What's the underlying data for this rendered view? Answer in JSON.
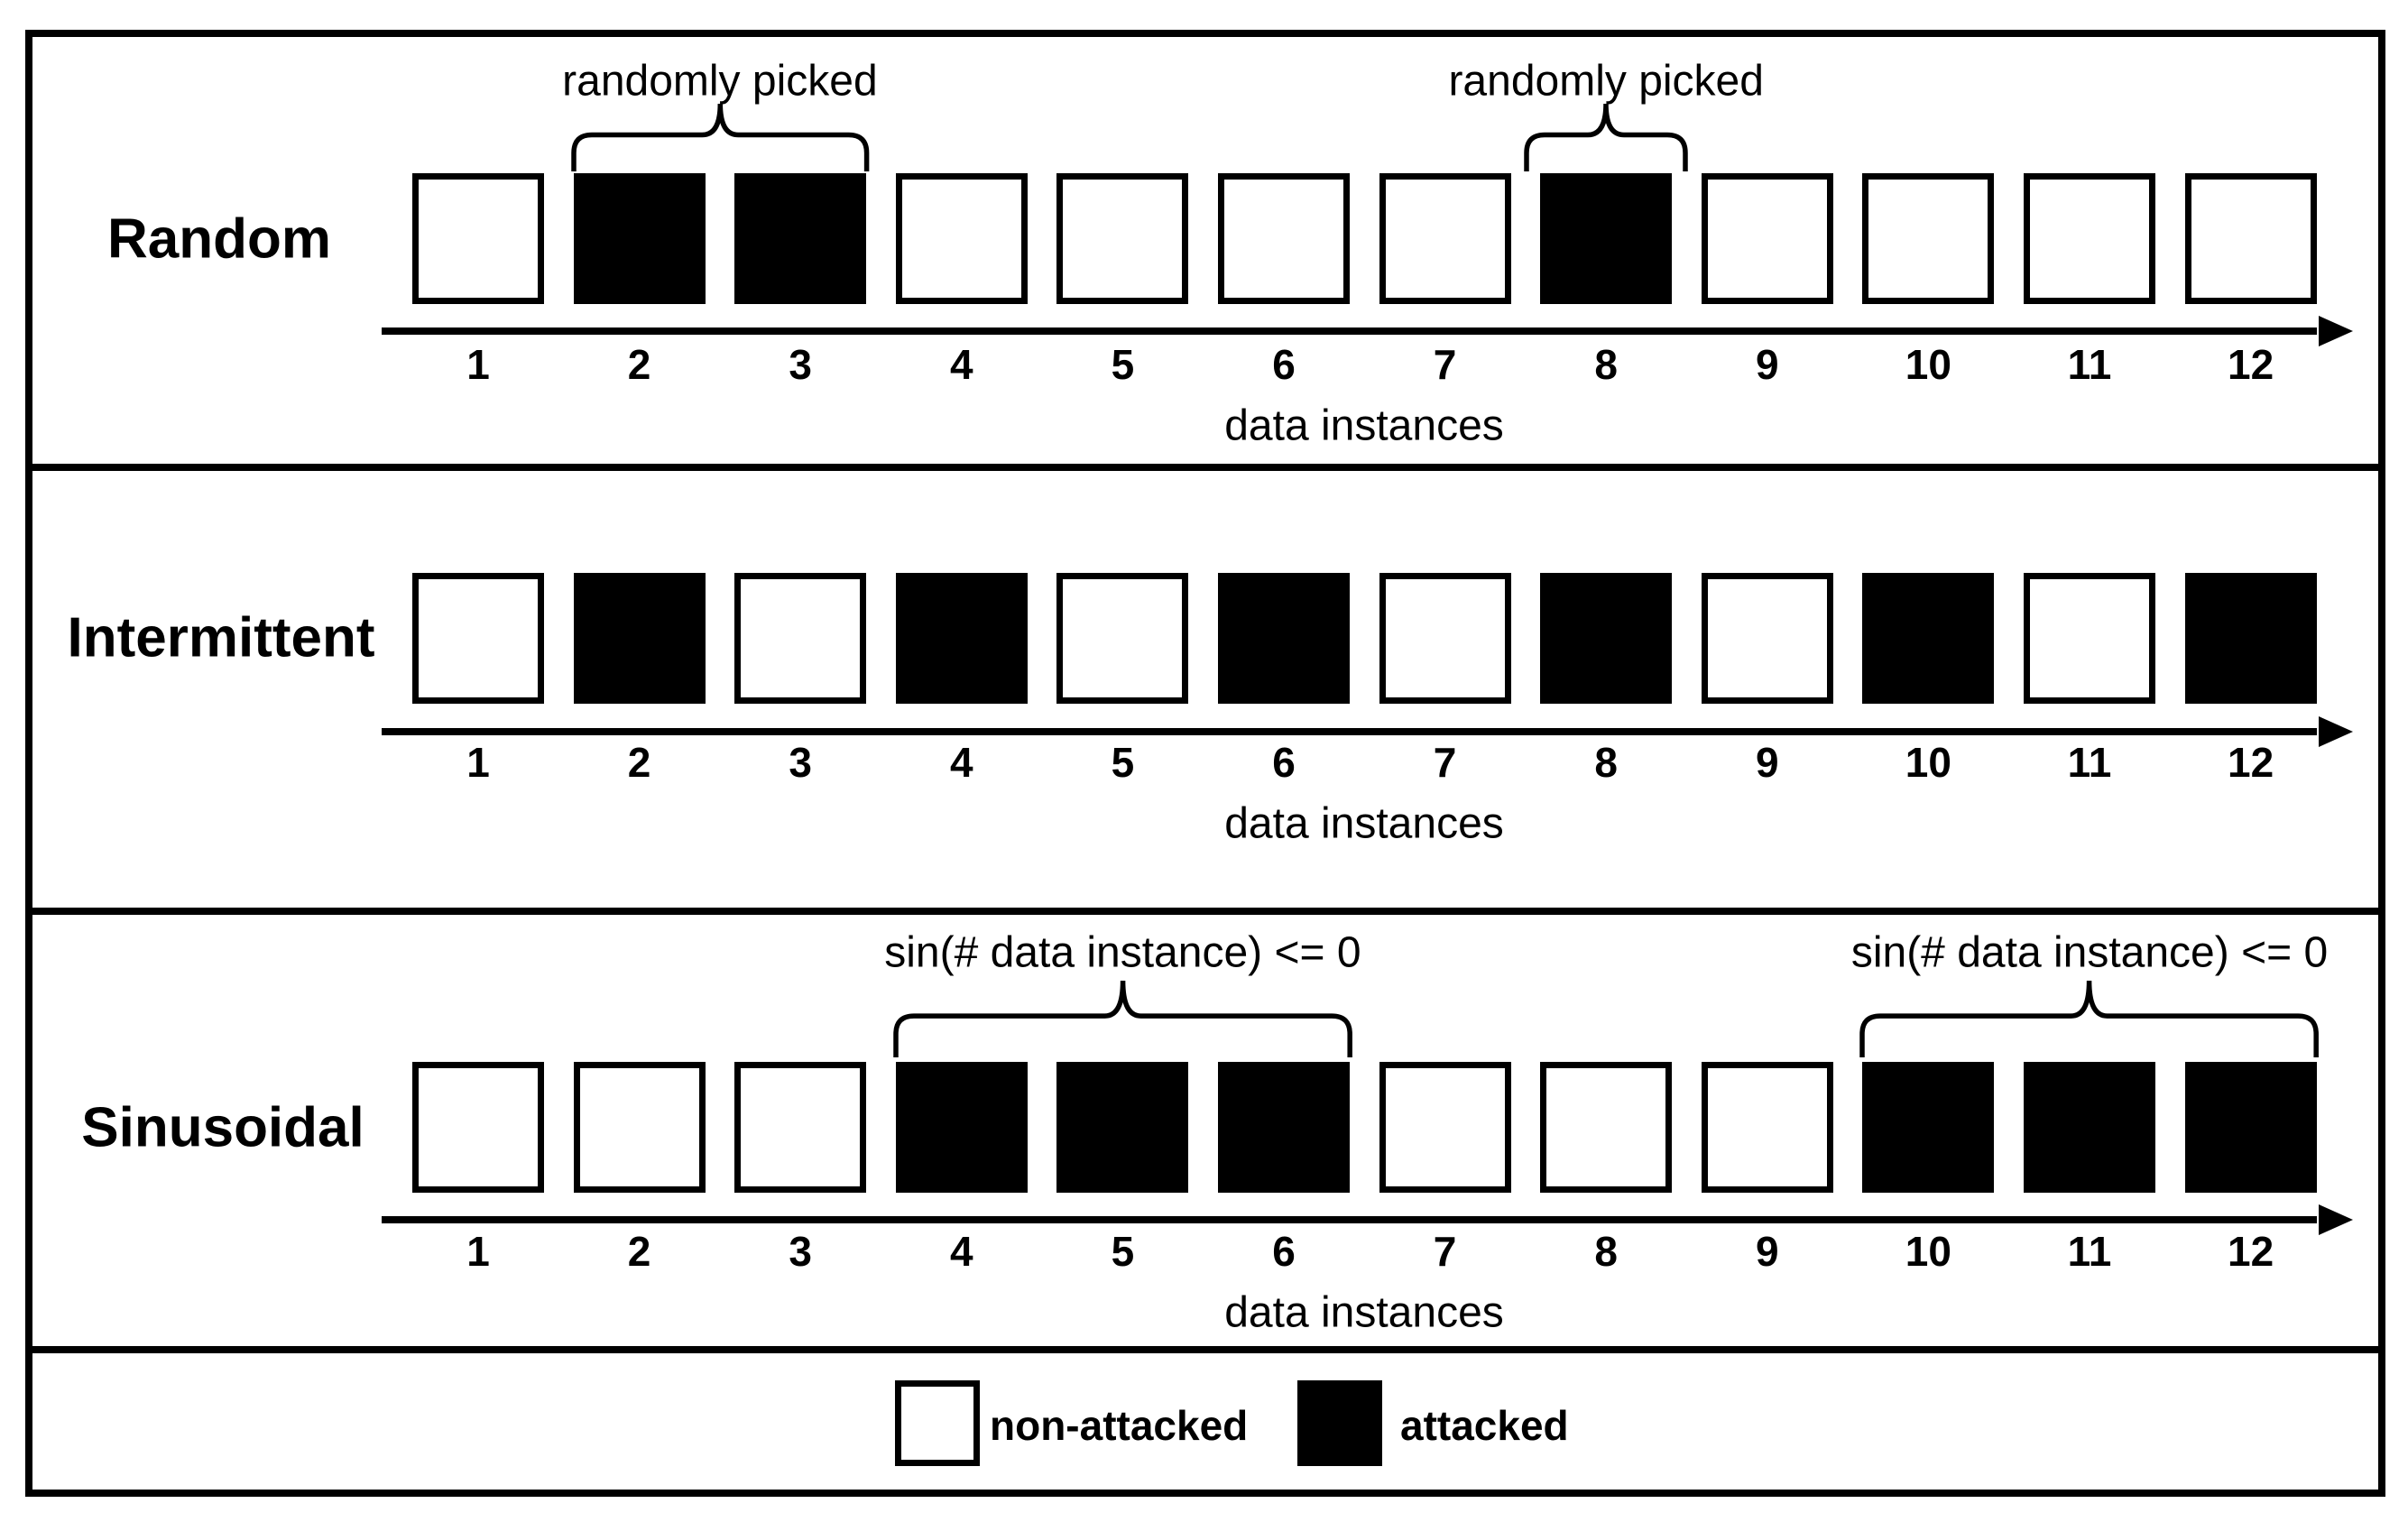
{
  "rows": [
    {
      "label": "Random",
      "pattern": [
        "non-attacked",
        "attacked",
        "attacked",
        "non-attacked",
        "non-attacked",
        "non-attacked",
        "non-attacked",
        "attacked",
        "non-attacked",
        "non-attacked",
        "non-attacked",
        "non-attacked"
      ],
      "ticks": [
        "1",
        "2",
        "3",
        "4",
        "5",
        "6",
        "7",
        "8",
        "9",
        "10",
        "11",
        "12"
      ],
      "axis_label": "data instances",
      "annotations": [
        {
          "label": "randomly picked",
          "from_instance": 2,
          "to_instance": 3
        },
        {
          "label": "randomly picked",
          "from_instance": 8,
          "to_instance": 8
        }
      ]
    },
    {
      "label": "Intermittent",
      "pattern": [
        "non-attacked",
        "attacked",
        "non-attacked",
        "attacked",
        "non-attacked",
        "attacked",
        "non-attacked",
        "attacked",
        "non-attacked",
        "attacked",
        "non-attacked",
        "attacked"
      ],
      "ticks": [
        "1",
        "2",
        "3",
        "4",
        "5",
        "6",
        "7",
        "8",
        "9",
        "10",
        "11",
        "12"
      ],
      "axis_label": "data instances",
      "annotations": []
    },
    {
      "label": "Sinusoidal",
      "pattern": [
        "non-attacked",
        "non-attacked",
        "non-attacked",
        "attacked",
        "attacked",
        "attacked",
        "non-attacked",
        "non-attacked",
        "non-attacked",
        "attacked",
        "attacked",
        "attacked"
      ],
      "ticks": [
        "1",
        "2",
        "3",
        "4",
        "5",
        "6",
        "7",
        "8",
        "9",
        "10",
        "11",
        "12"
      ],
      "axis_label": "data instances",
      "annotations": [
        {
          "label": "sin(# data instance) <= 0",
          "from_instance": 4,
          "to_instance": 6
        },
        {
          "label": "sin(# data instance) <= 0",
          "from_instance": 10,
          "to_instance": 12
        }
      ]
    }
  ],
  "legend": {
    "items": [
      {
        "label": "non-attacked",
        "swatch": "non-attacked"
      },
      {
        "label": "attacked",
        "swatch": "attacked"
      }
    ]
  },
  "colors": {
    "attacked": "#000000",
    "non_attacked": "#ffffff",
    "line": "#000000",
    "background": "#ffffff"
  }
}
